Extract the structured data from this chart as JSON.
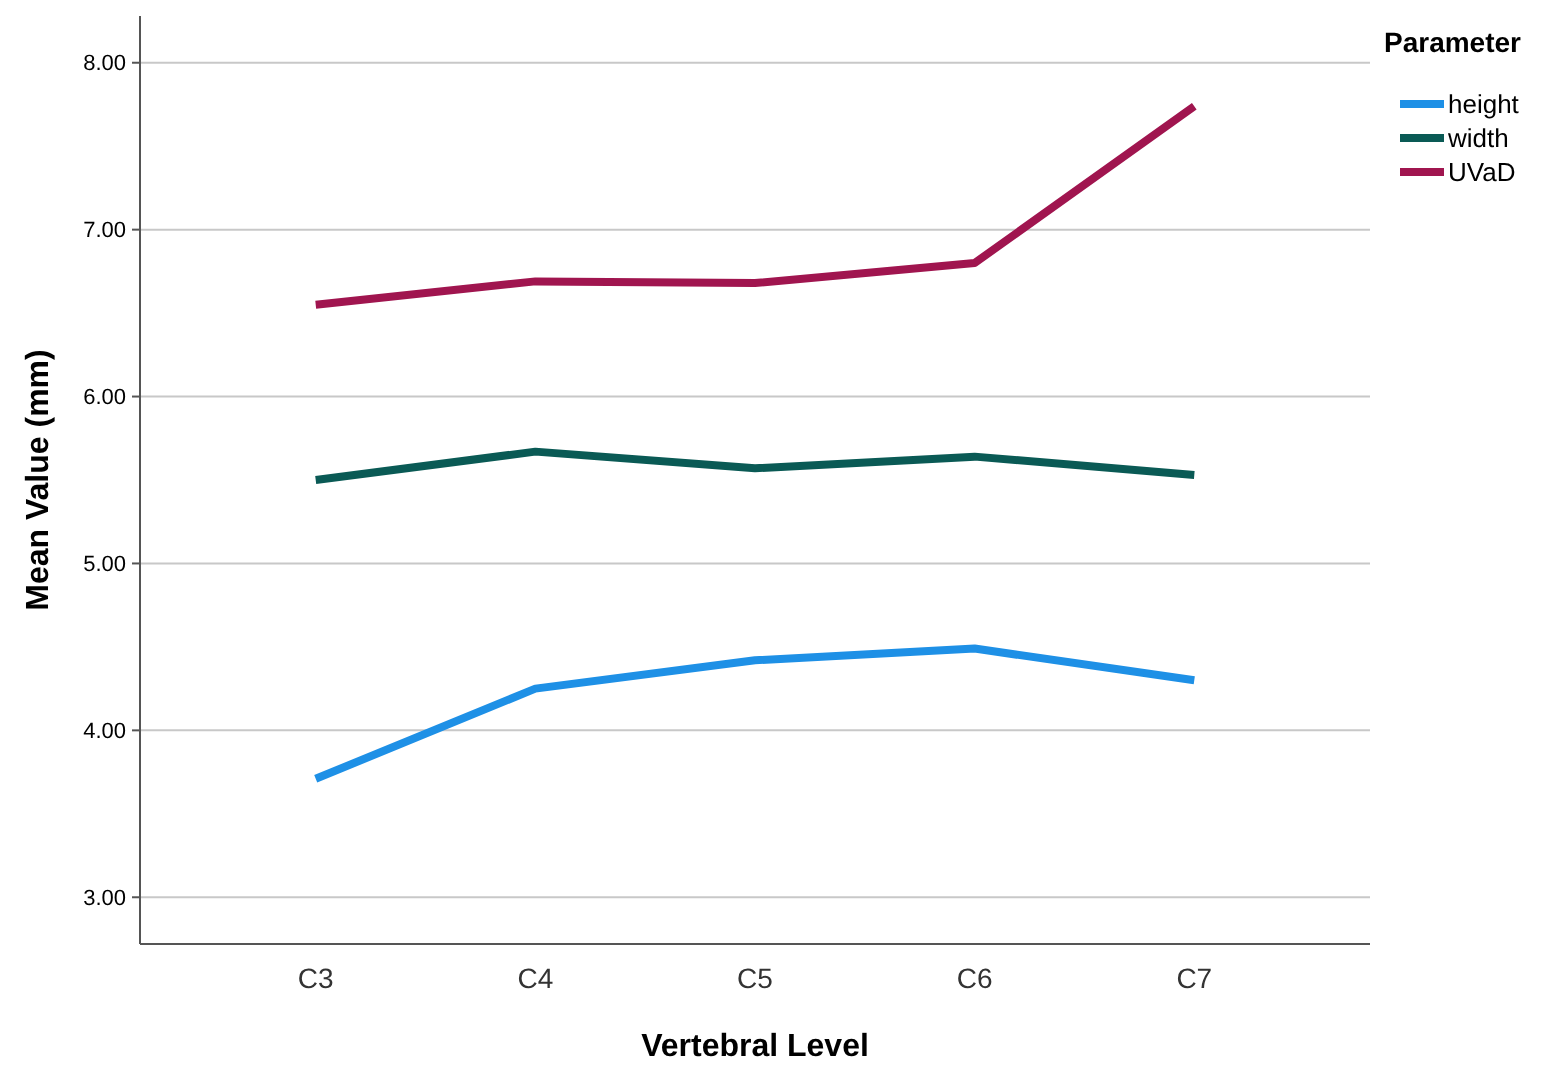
{
  "chart_data": {
    "type": "line",
    "xlabel": "Vertebral Level",
    "ylabel": "Mean Value (mm)",
    "legend_title": "Parameter",
    "legend": "top right",
    "grid": "y",
    "categories": [
      "C3",
      "C4",
      "C5",
      "C6",
      "C7"
    ],
    "ylim": [
      2.72,
      8.28
    ],
    "yticks": [
      {
        "value": 3,
        "label": "3.00"
      },
      {
        "value": 4,
        "label": "4.00"
      },
      {
        "value": 5,
        "label": "5.00"
      },
      {
        "value": 6,
        "label": "6.00"
      },
      {
        "value": 7,
        "label": "7.00"
      },
      {
        "value": 8,
        "label": "8.00"
      }
    ],
    "series": [
      {
        "name": "height",
        "color": "#1e90e6",
        "values": [
          3.71,
          4.25,
          4.42,
          4.49,
          4.3
        ]
      },
      {
        "name": "width",
        "color": "#0a5a55",
        "values": [
          5.5,
          5.67,
          5.57,
          5.64,
          5.53
        ]
      },
      {
        "name": "UVaD",
        "color": "#a0154f",
        "values": [
          6.55,
          6.69,
          6.68,
          6.8,
          7.74
        ]
      }
    ]
  }
}
